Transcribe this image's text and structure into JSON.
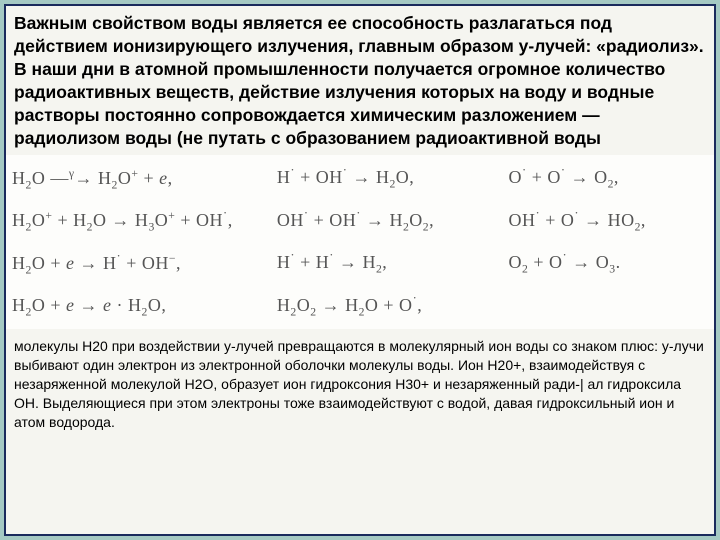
{
  "mainText": "Важным свойством воды является ее способность разлагаться под действием ионизирующего излучения, главным образом y-лучей: «радиолиз». В наши дни в атомной промышленности получается огромное количество радиоактивных веществ, действие излучения которых на воду и водные растворы постоянно сопровождается химическим разложением — радиолизом воды (не путать с образованием радиоактивной воды",
  "equations": {
    "colors": {
      "text": "#555555",
      "background": "#fdfdfb"
    },
    "fontSizePt": 14,
    "rows": [
      [
        "H₂O —ᵞ→ H₂O⁺ + e,",
        "H· + OH· → H₂O,",
        "O· + O· → O₂,"
      ],
      [
        "H₂O⁺ + H₂O → H₃O⁺ + OH·,",
        "OH· + OH· → H₂O₂,",
        "OH· + O· → HO₂,"
      ],
      [
        "H₂O + e → H· + OH⁻,",
        "H· + H· → H₂,",
        "O₂ + O· → O₃."
      ],
      [
        "H₂O + e → e · H₂O,",
        "H₂O₂ → H₂O + O·,",
        ""
      ]
    ]
  },
  "caption": "молекулы Н20 при воздействии y-лучей превращаются в молекулярный ион воды со знаком плюс: y-лучи выбивают один электрон из электронной оболочки молекулы воды. Ион Н20+, взаимодействуя с незаряженной молекулой Н2О, образует ион гидроксония Н30+ и незаряженный ради-| ал гидроксила ОН. Выделяющиеся при этом электроны тоже взаимодействуют с водой, давая гидроксильный ион и атом водорода.",
  "style": {
    "frameBorder": "#1a2a5c",
    "pageBackground": "#a5c9c3",
    "panelBackground": "#f5f5f0",
    "mainFontSizePt": 13,
    "captionFontSizePt": 10.5
  }
}
